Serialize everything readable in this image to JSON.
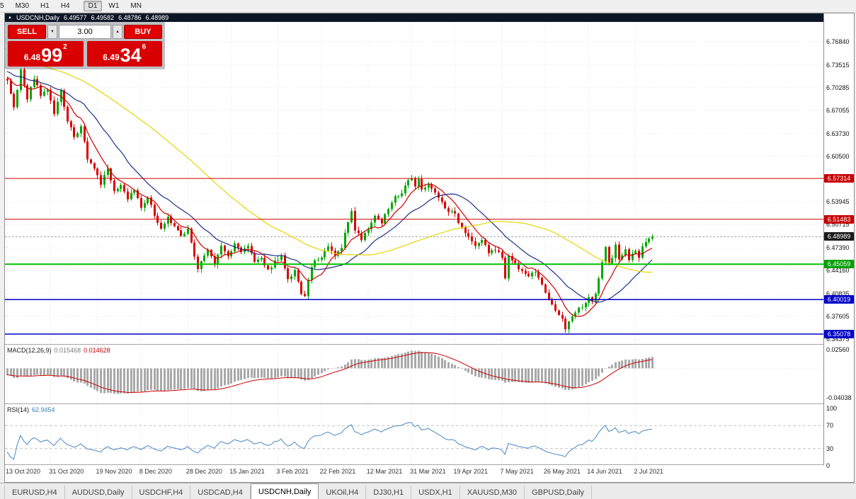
{
  "icons": {
    "collapse": "▲",
    "lot_down": "▼",
    "lot_up": "▲"
  },
  "timeframe_toolbar": {
    "buttons": [
      "5",
      "M30",
      "H1",
      "H4",
      "D1",
      "W1",
      "MN"
    ],
    "active": "D1"
  },
  "chart_header": {
    "title": "USDCNH,Daily",
    "open": "6.49577",
    "high": "6.49582",
    "low": "6.48786",
    "close": "6.48989"
  },
  "trade_panel": {
    "sell_label": "SELL",
    "buy_label": "BUY",
    "lot_value": "3.00",
    "bid": {
      "small": "6.48",
      "big": "99",
      "sup": "2"
    },
    "ask": {
      "small": "6.49",
      "big": "34",
      "sup": "6"
    },
    "button_color": "#e00000"
  },
  "macd_panel": {
    "label": "MACD(12,26,9)",
    "main_value": "0.015468",
    "signal_value": "0.014628",
    "scale_top": "0.02560",
    "scale_bottom": "-0.04038"
  },
  "rsi_panel": {
    "label": "RSI(14)",
    "value": "62.9454",
    "scale": [
      "100",
      "70",
      "30",
      "0"
    ]
  },
  "bottom_tabs": {
    "tabs": [
      "EURUSD,H4",
      "AUDUSD,Daily",
      "USDCHF,H4",
      "USDCAD,H4",
      "USDCNH,Daily",
      "UKOil,H4",
      "DJ30,H1",
      "USDX,H1",
      "XAUUSD,M30",
      "GBPUSD,Daily"
    ],
    "active": "USDCNH,Daily"
  },
  "chart_data": {
    "type": "candlestick",
    "symbol": "USDCNH",
    "timeframe": "Daily",
    "ohlc_current": {
      "open": 6.49577,
      "high": 6.49582,
      "low": 6.48786,
      "close": 6.48989
    },
    "last_close": 6.48989,
    "num_candles": 194,
    "ylim": [
      6.337,
      6.797
    ],
    "y_tick_prices": [
      6.7684,
      6.73515,
      6.70285,
      6.67055,
      6.6373,
      6.605,
      6.53945,
      6.50715,
      6.4739,
      6.4416,
      6.40835,
      6.37605,
      6.34375
    ],
    "badges": [
      {
        "price": 6.57314,
        "color": "#c80000"
      },
      {
        "price": 6.51483,
        "color": "#c80000"
      },
      {
        "price": 6.48989,
        "color": "#1a1a1a"
      },
      {
        "price": 6.45059,
        "color": "#00a000"
      },
      {
        "price": 6.40019,
        "color": "#0000c8"
      },
      {
        "price": 6.35078,
        "color": "#0000c8"
      }
    ],
    "horizontal_lines": [
      {
        "price": 6.57314,
        "color": "#cc0000",
        "width": 1
      },
      {
        "price": 6.51483,
        "color": "#cc0000",
        "width": 1
      },
      {
        "price": 6.45059,
        "color": "#00c000",
        "width": 2
      },
      {
        "price": 6.40019,
        "color": "#0000cc",
        "width": 1.5
      },
      {
        "price": 6.35078,
        "color": "#0000cc",
        "width": 1.5
      }
    ],
    "x_tick_labels": [
      "13 Oct 2020",
      "31 Oct 2020",
      "19 Nov 2020",
      "8 Dec 2020",
      "28 Dec 2020",
      "15 Jan 2021",
      "3 Feb 2021",
      "22 Feb 2021",
      "12 Mar 2021",
      "31 Mar 2021",
      "19 Apr 2021",
      "7 May 2021",
      "26 May 2021",
      "14 Jun 2021",
      "2 Jul 2021"
    ],
    "x_tick_indices": [
      0,
      13,
      27,
      40,
      54,
      67,
      81,
      94,
      108,
      121,
      134,
      148,
      161,
      174,
      188
    ],
    "candle_up_color": "#00a800",
    "candle_down_color": "#dc0000",
    "moving_averages": [
      {
        "period": 8,
        "color": "#cc0000"
      },
      {
        "period": 20,
        "color": "#1c2f87"
      },
      {
        "period": 55,
        "color": "#e8d400"
      }
    ],
    "close_anchors": [
      [
        0,
        6.712
      ],
      [
        2,
        6.672
      ],
      [
        4,
        6.726
      ],
      [
        6,
        6.686
      ],
      [
        8,
        6.716
      ],
      [
        10,
        6.692
      ],
      [
        12,
        6.701
      ],
      [
        14,
        6.664
      ],
      [
        16,
        6.7
      ],
      [
        18,
        6.655
      ],
      [
        20,
        6.632
      ],
      [
        22,
        6.645
      ],
      [
        24,
        6.603
      ],
      [
        26,
        6.59
      ],
      [
        28,
        6.566
      ],
      [
        30,
        6.585
      ],
      [
        32,
        6.552
      ],
      [
        34,
        6.561
      ],
      [
        36,
        6.546
      ],
      [
        38,
        6.556
      ],
      [
        40,
        6.532
      ],
      [
        42,
        6.546
      ],
      [
        44,
        6.521
      ],
      [
        46,
        6.499
      ],
      [
        48,
        6.516
      ],
      [
        50,
        6.506
      ],
      [
        52,
        6.491
      ],
      [
        54,
        6.501
      ],
      [
        56,
        6.46
      ],
      [
        57,
        6.441
      ],
      [
        58,
        6.456
      ],
      [
        60,
        6.471
      ],
      [
        62,
        6.451
      ],
      [
        64,
        6.476
      ],
      [
        66,
        6.461
      ],
      [
        68,
        6.481
      ],
      [
        70,
        6.466
      ],
      [
        72,
        6.476
      ],
      [
        74,
        6.456
      ],
      [
        76,
        6.462
      ],
      [
        78,
        6.441
      ],
      [
        80,
        6.456
      ],
      [
        82,
        6.461
      ],
      [
        84,
        6.431
      ],
      [
        86,
        6.441
      ],
      [
        88,
        6.408
      ],
      [
        89,
        6.403
      ],
      [
        90,
        6.431
      ],
      [
        92,
        6.456
      ],
      [
        94,
        6.461
      ],
      [
        96,
        6.479
      ],
      [
        98,
        6.461
      ],
      [
        100,
        6.476
      ],
      [
        102,
        6.509
      ],
      [
        103,
        6.524
      ],
      [
        104,
        6.501
      ],
      [
        106,
        6.486
      ],
      [
        108,
        6.501
      ],
      [
        110,
        6.519
      ],
      [
        112,
        6.511
      ],
      [
        114,
        6.531
      ],
      [
        116,
        6.546
      ],
      [
        118,
        6.551
      ],
      [
        120,
        6.569
      ],
      [
        121,
        6.574
      ],
      [
        122,
        6.561
      ],
      [
        123,
        6.574
      ],
      [
        124,
        6.556
      ],
      [
        126,
        6.566
      ],
      [
        128,
        6.551
      ],
      [
        130,
        6.541
      ],
      [
        132,
        6.526
      ],
      [
        134,
        6.521
      ],
      [
        136,
        6.501
      ],
      [
        138,
        6.491
      ],
      [
        140,
        6.476
      ],
      [
        142,
        6.486
      ],
      [
        144,
        6.466
      ],
      [
        146,
        6.471
      ],
      [
        148,
        6.461
      ],
      [
        149,
        6.432
      ],
      [
        150,
        6.464
      ],
      [
        152,
        6.451
      ],
      [
        154,
        6.441
      ],
      [
        156,
        6.431
      ],
      [
        158,
        6.441
      ],
      [
        160,
        6.421
      ],
      [
        161,
        6.411
      ],
      [
        162,
        6.401
      ],
      [
        164,
        6.384
      ],
      [
        166,
        6.371
      ],
      [
        167,
        6.359
      ],
      [
        168,
        6.366
      ],
      [
        170,
        6.381
      ],
      [
        172,
        6.391
      ],
      [
        174,
        6.401
      ],
      [
        175,
        6.396
      ],
      [
        176,
        6.406
      ],
      [
        177,
        6.431
      ],
      [
        178,
        6.456
      ],
      [
        179,
        6.474
      ],
      [
        180,
        6.451
      ],
      [
        181,
        6.461
      ],
      [
        182,
        6.476
      ],
      [
        183,
        6.456
      ],
      [
        184,
        6.461
      ],
      [
        185,
        6.471
      ],
      [
        186,
        6.456
      ],
      [
        187,
        6.466
      ],
      [
        188,
        6.471
      ],
      [
        189,
        6.461
      ],
      [
        190,
        6.476
      ],
      [
        191,
        6.481
      ],
      [
        192,
        6.486
      ],
      [
        193,
        6.48989
      ]
    ],
    "indicators": [
      {
        "name": "MACD",
        "params": [
          12,
          26,
          9
        ],
        "main_value": 0.015468,
        "signal_value": 0.014628,
        "scale": [
          -0.04038,
          0.0256
        ],
        "histogram_color": "#a9a9a9",
        "signal_color": "#cc0000"
      },
      {
        "name": "RSI",
        "params": [
          14
        ],
        "value": 62.9454,
        "levels": [
          70,
          30
        ],
        "range": [
          0,
          100
        ],
        "line_color": "#4788c7"
      }
    ]
  }
}
